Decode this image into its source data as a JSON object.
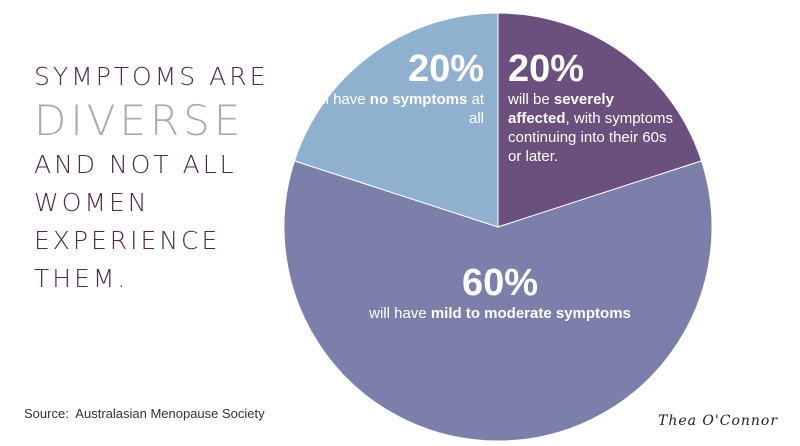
{
  "headline": {
    "line1": "SYMPTOMS ARE",
    "line2": "DIVERSE",
    "line3": "AND NOT ALL",
    "line4": "WOMEN",
    "line5": "EXPERIENCE",
    "line6": "THEM."
  },
  "source": "Source:  Australasian Menopause Society",
  "signature": "Thea O'Connor",
  "chart_data": {
    "type": "pie",
    "title": "",
    "slices": [
      {
        "value": 20,
        "percent_label": "20%",
        "text_parts": [
          "will be ",
          "severely affected",
          ", with symptoms continuing into their 60s or later."
        ],
        "color": "#6b4f7c"
      },
      {
        "value": 60,
        "percent_label": "60%",
        "text_parts": [
          "will have ",
          "mild to  moderate symptoms",
          ""
        ],
        "color": "#7b7fa9"
      },
      {
        "value": 20,
        "percent_label": "20%",
        "text_parts": [
          "will have ",
          "no symptoms",
          " at all"
        ],
        "color": "#8fb0cf"
      }
    ]
  }
}
